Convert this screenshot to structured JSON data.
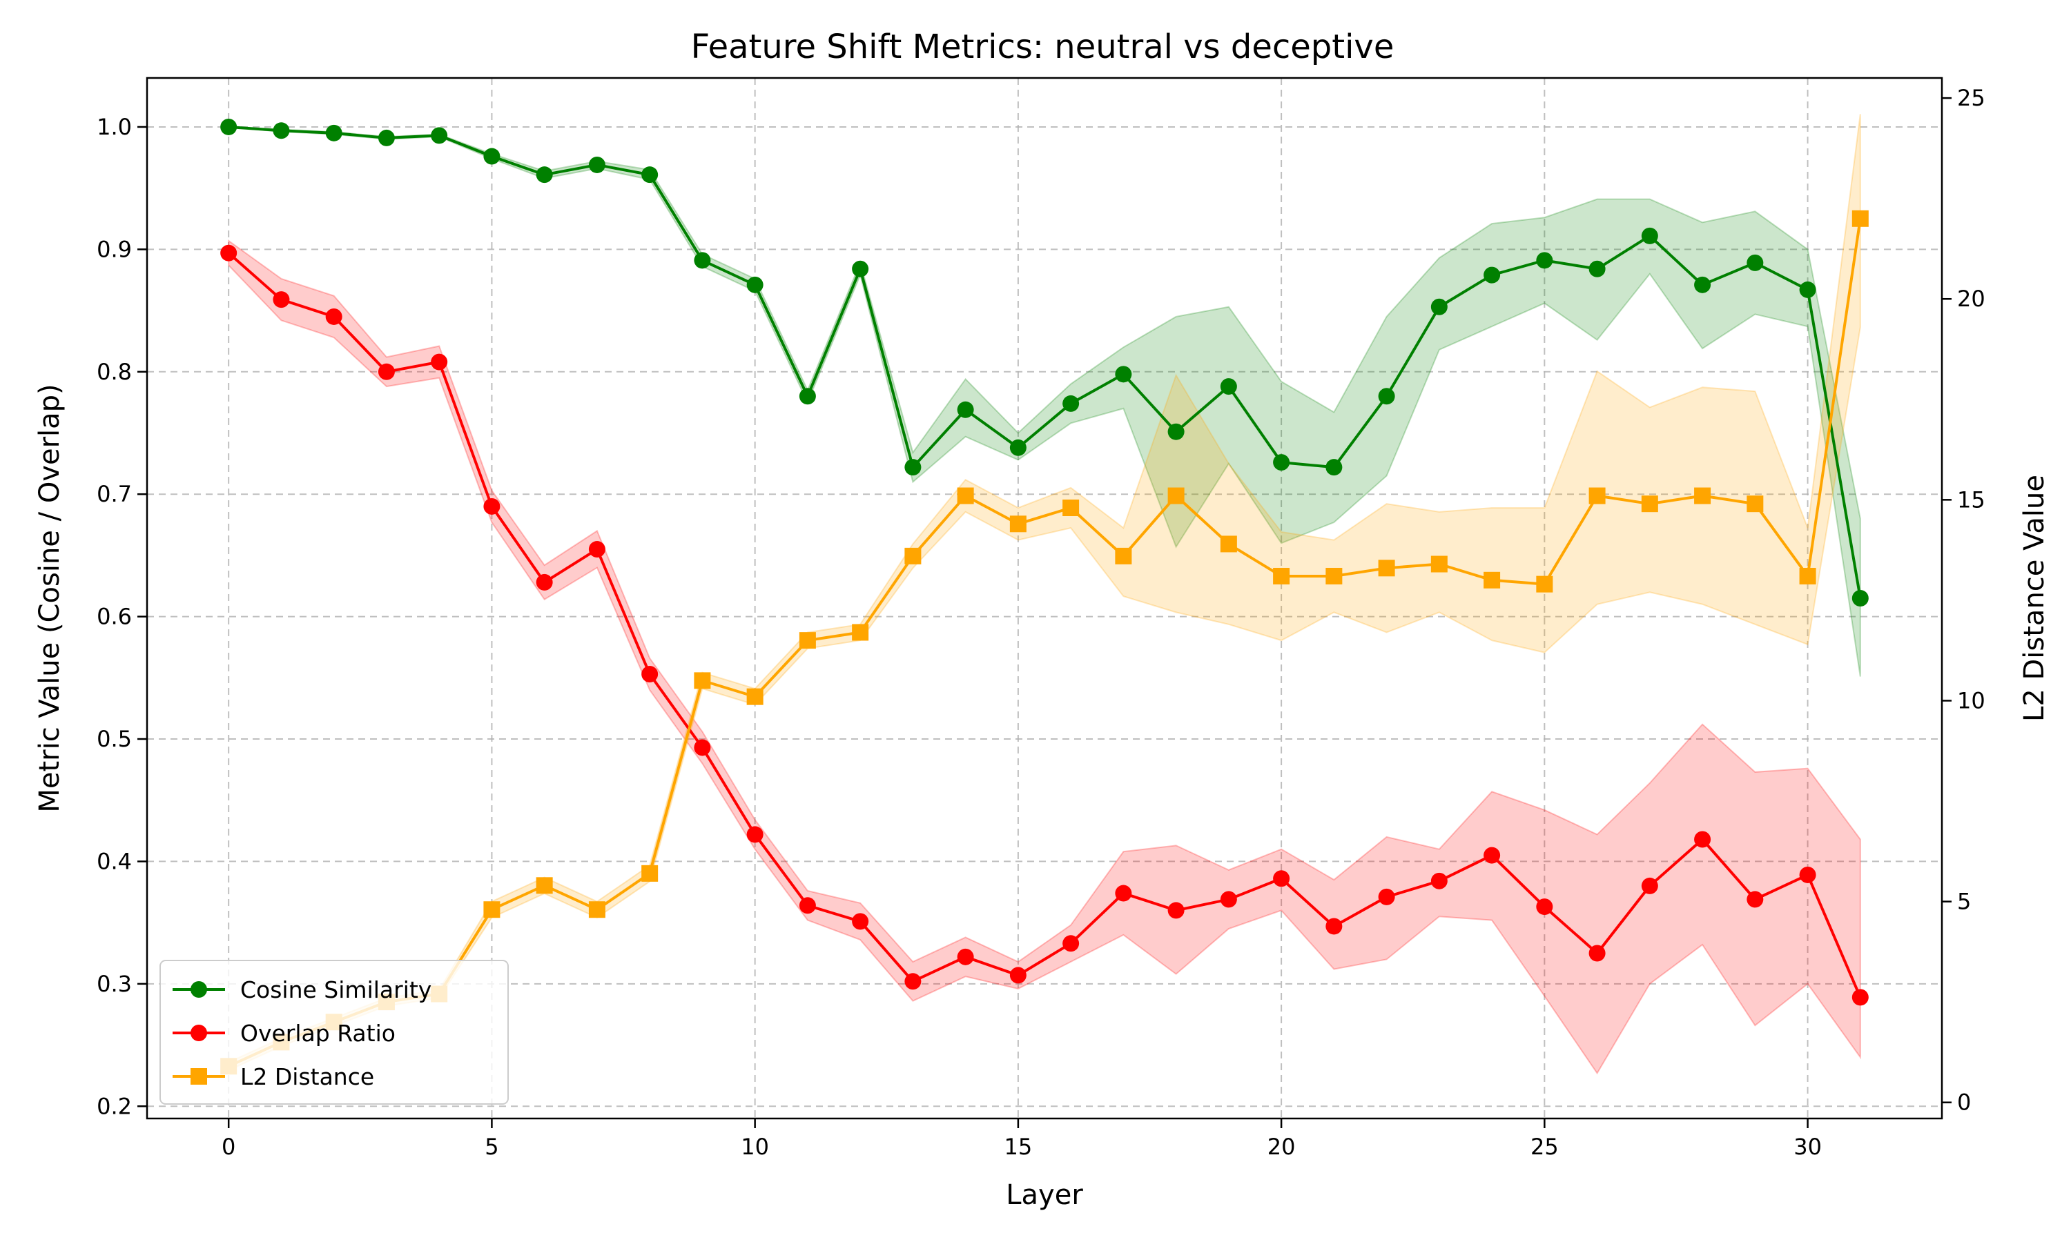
{
  "chart_data": {
    "type": "line",
    "title": "Feature Shift Metrics: neutral vs deceptive",
    "xlabel": "Layer",
    "ylabel": "Metric Value (Cosine / Overlap)",
    "y2label": "L2 Distance Value",
    "xlim": [
      -1.55,
      32.55
    ],
    "ylim": [
      0.19,
      1.04
    ],
    "y2lim": [
      -0.4,
      25.5
    ],
    "xticks": [
      0,
      5,
      10,
      15,
      20,
      25,
      30
    ],
    "yticks": [
      0.2,
      0.3,
      0.4,
      0.5,
      0.6,
      0.7,
      0.8,
      0.9,
      1.0
    ],
    "y2ticks": [
      0,
      5,
      10,
      15,
      20,
      25
    ],
    "grid": true,
    "legend_position": "lower-left",
    "x": [
      0,
      1,
      2,
      3,
      4,
      5,
      6,
      7,
      8,
      9,
      10,
      11,
      12,
      13,
      14,
      15,
      16,
      17,
      18,
      19,
      20,
      21,
      22,
      23,
      24,
      25,
      26,
      27,
      28,
      29,
      30,
      31
    ],
    "series": [
      {
        "name": "Cosine Similarity",
        "axis": "left",
        "color": "#008000",
        "marker": "circle",
        "values": [
          1.0,
          0.997,
          0.995,
          0.991,
          0.993,
          0.976,
          0.961,
          0.969,
          0.961,
          0.891,
          0.871,
          0.78,
          0.884,
          0.722,
          0.769,
          0.738,
          0.774,
          0.798,
          0.751,
          0.788,
          0.726,
          0.722,
          0.78,
          0.853,
          0.879,
          0.891,
          0.884,
          0.911,
          0.871,
          0.889,
          0.867,
          0.615
        ],
        "lower": [
          1.0,
          0.996,
          0.994,
          0.99,
          0.992,
          0.974,
          0.958,
          0.966,
          0.957,
          0.886,
          0.866,
          0.775,
          0.879,
          0.71,
          0.747,
          0.728,
          0.758,
          0.77,
          0.657,
          0.725,
          0.66,
          0.677,
          0.715,
          0.818,
          0.837,
          0.856,
          0.826,
          0.88,
          0.819,
          0.847,
          0.837,
          0.551
        ],
        "upper": [
          1.0,
          0.998,
          0.996,
          0.992,
          0.994,
          0.978,
          0.964,
          0.972,
          0.965,
          0.896,
          0.876,
          0.785,
          0.889,
          0.734,
          0.794,
          0.75,
          0.79,
          0.82,
          0.845,
          0.853,
          0.792,
          0.767,
          0.845,
          0.893,
          0.921,
          0.926,
          0.941,
          0.941,
          0.922,
          0.931,
          0.9,
          0.68
        ]
      },
      {
        "name": "Overlap Ratio",
        "axis": "left",
        "color": "#ff0000",
        "marker": "circle",
        "values": [
          0.897,
          0.859,
          0.845,
          0.8,
          0.808,
          0.69,
          0.628,
          0.655,
          0.553,
          0.493,
          0.422,
          0.364,
          0.351,
          0.302,
          0.322,
          0.307,
          0.333,
          0.374,
          0.36,
          0.369,
          0.386,
          0.347,
          0.371,
          0.384,
          0.405,
          0.363,
          0.325,
          0.38,
          0.418,
          0.369,
          0.389,
          0.289
        ],
        "lower": [
          0.887,
          0.842,
          0.828,
          0.788,
          0.795,
          0.677,
          0.614,
          0.64,
          0.54,
          0.48,
          0.41,
          0.352,
          0.336,
          0.286,
          0.306,
          0.296,
          0.318,
          0.34,
          0.308,
          0.345,
          0.36,
          0.312,
          0.32,
          0.355,
          0.352,
          0.29,
          0.227,
          0.3,
          0.332,
          0.266,
          0.3,
          0.24
        ],
        "upper": [
          0.907,
          0.876,
          0.862,
          0.812,
          0.821,
          0.703,
          0.642,
          0.67,
          0.566,
          0.506,
          0.434,
          0.376,
          0.366,
          0.318,
          0.338,
          0.318,
          0.348,
          0.408,
          0.413,
          0.393,
          0.41,
          0.385,
          0.42,
          0.41,
          0.457,
          0.442,
          0.422,
          0.464,
          0.512,
          0.473,
          0.476,
          0.418
        ]
      },
      {
        "name": "L2 Distance",
        "axis": "right",
        "color": "#ffa500",
        "marker": "square",
        "values": [
          0.9,
          1.5,
          2.0,
          2.5,
          2.7,
          4.8,
          5.4,
          4.8,
          5.7,
          10.5,
          10.1,
          11.5,
          11.7,
          13.6,
          15.1,
          14.4,
          14.8,
          13.6,
          15.1,
          13.9,
          13.1,
          13.1,
          13.3,
          13.4,
          13.0,
          12.9,
          15.1,
          14.9,
          15.1,
          14.9,
          13.1,
          22.0
        ],
        "lower": [
          0.8,
          1.4,
          1.9,
          2.4,
          2.6,
          4.6,
          5.2,
          4.6,
          5.5,
          10.3,
          9.9,
          11.3,
          11.5,
          13.3,
          14.7,
          14.0,
          14.3,
          12.6,
          12.2,
          11.9,
          11.5,
          12.2,
          11.7,
          12.2,
          11.5,
          11.2,
          12.4,
          12.7,
          12.4,
          11.9,
          11.4,
          19.3
        ],
        "upper": [
          1.0,
          1.6,
          2.1,
          2.6,
          2.8,
          5.0,
          5.6,
          5.0,
          5.9,
          10.7,
          10.3,
          11.7,
          11.9,
          13.9,
          15.5,
          14.8,
          15.3,
          14.3,
          18.1,
          15.9,
          14.2,
          14.0,
          14.9,
          14.7,
          14.8,
          14.8,
          18.2,
          17.3,
          17.8,
          17.7,
          14.3,
          24.6
        ]
      }
    ]
  }
}
